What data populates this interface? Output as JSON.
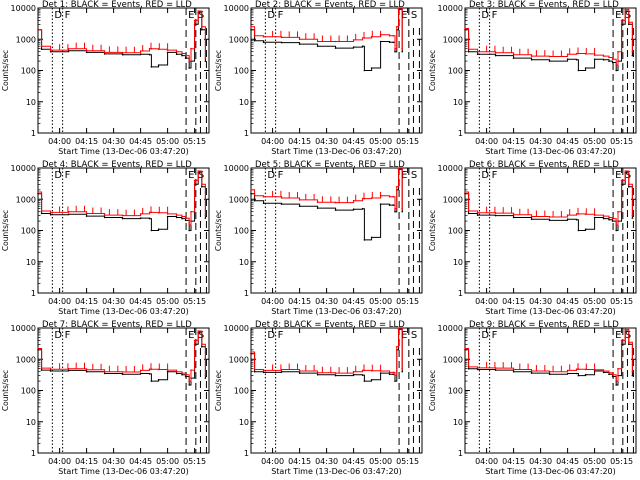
{
  "figure": {
    "xlabel": "Start Time (13-Dec-06 03:47:20)",
    "ylabel": "Counts/sec",
    "x_ticks": [
      "04:00",
      "04:15",
      "04:30",
      "04:45",
      "05:00",
      "05:15"
    ],
    "y_ticks": [
      "1",
      "10",
      "100",
      "1000",
      "10000"
    ],
    "region_labels": [
      "D",
      "F",
      "E",
      "S"
    ],
    "colors": {
      "events": "#000000",
      "lld": "#ff0000"
    }
  },
  "chart_data": [
    {
      "type": "line",
      "title": "Det 1: BLACK = Events, RED = LLD",
      "xlabel": "Start Time (13-Dec-06 03:47:20)",
      "ylabel": "Counts/sec",
      "y_scale": "log",
      "ylim": [
        1,
        10000
      ],
      "xlim": [
        "03:48",
        "05:23"
      ],
      "x_ticks": [
        "04:00",
        "04:15",
        "04:30",
        "04:45",
        "05:00",
        "05:15"
      ],
      "y_ticks": [
        "1",
        "10",
        "100",
        "1000",
        "10000"
      ],
      "region_labels": [
        "D",
        "F",
        "E",
        "S"
      ],
      "x": [
        "03:48",
        "03:50",
        "03:55",
        "04:05",
        "04:15",
        "04:25",
        "04:35",
        "04:45",
        "04:50",
        "04:51",
        "04:55",
        "05:00",
        "05:05",
        "05:08",
        "05:10",
        "05:12",
        "05:13",
        "05:15",
        "05:17",
        "05:19",
        "05:21"
      ],
      "series": [
        {
          "name": "Events",
          "values": [
            2000,
            480,
            400,
            430,
            380,
            340,
            320,
            330,
            320,
            130,
            150,
            380,
            330,
            300,
            250,
            120,
            200,
            3000,
            7000,
            2000,
            200
          ]
        },
        {
          "name": "LLD",
          "values": [
            2000,
            600,
            450,
            500,
            430,
            380,
            370,
            420,
            500,
            500,
            480,
            450,
            400,
            350,
            300,
            200,
            500,
            4000,
            8000,
            2500,
            250
          ]
        }
      ]
    },
    {
      "type": "line",
      "title": "Det 2: BLACK = Events, RED = LLD",
      "xlabel": "Start Time (13-Dec-06 03:47:20)",
      "ylabel": "Counts/sec",
      "y_scale": "log",
      "ylim": [
        1,
        10000
      ],
      "xlim": [
        "03:48",
        "05:23"
      ],
      "x_ticks": [
        "04:00",
        "04:15",
        "04:30",
        "04:45",
        "05:00",
        "05:15"
      ],
      "y_ticks": [
        "1",
        "10",
        "100",
        "1000",
        "10000"
      ],
      "region_labels": [
        "D",
        "F",
        "E",
        "S"
      ],
      "x": [
        "03:48",
        "03:50",
        "03:55",
        "04:05",
        "04:15",
        "04:25",
        "04:35",
        "04:45",
        "04:50",
        "04:51",
        "04:55",
        "05:00",
        "05:05",
        "05:07",
        "05:08",
        "05:09",
        "05:10",
        "05:12"
      ],
      "series": [
        {
          "name": "Events",
          "values": [
            2000,
            900,
            800,
            780,
            700,
            600,
            520,
            560,
            600,
            100,
            120,
            850,
            800,
            800,
            400,
            2000,
            9000,
            400
          ]
        },
        {
          "name": "LLD",
          "values": [
            2500,
            1300,
            1200,
            1150,
            1000,
            850,
            850,
            950,
            1100,
            1100,
            1200,
            1400,
            1300,
            1300,
            500,
            2500,
            9500,
            500
          ]
        }
      ]
    },
    {
      "type": "line",
      "title": "Det 3: BLACK = Events, RED = LLD",
      "xlabel": "Start Time (13-Dec-06 03:47:20)",
      "ylabel": "Counts/sec",
      "y_scale": "log",
      "ylim": [
        1,
        10000
      ],
      "xlim": [
        "03:48",
        "05:23"
      ],
      "x_ticks": [
        "04:00",
        "04:15",
        "04:30",
        "04:45",
        "05:00",
        "05:15"
      ],
      "y_ticks": [
        "1",
        "10",
        "100",
        "1000",
        "10000"
      ],
      "region_labels": [
        "D",
        "F",
        "E",
        "S"
      ],
      "x": [
        "03:48",
        "03:50",
        "03:55",
        "04:05",
        "04:15",
        "04:25",
        "04:35",
        "04:45",
        "04:50",
        "04:51",
        "04:55",
        "05:00",
        "05:05",
        "05:08",
        "05:10",
        "05:12",
        "05:13",
        "05:15",
        "05:17",
        "05:19",
        "05:21"
      ],
      "series": [
        {
          "name": "Events",
          "values": [
            2000,
            400,
            330,
            300,
            250,
            220,
            200,
            230,
            220,
            100,
            120,
            230,
            220,
            200,
            180,
            100,
            200,
            3000,
            8000,
            3000,
            300
          ]
        },
        {
          "name": "LLD",
          "values": [
            2200,
            480,
            400,
            370,
            320,
            290,
            280,
            330,
            350,
            350,
            340,
            310,
            290,
            260,
            230,
            150,
            400,
            4000,
            9000,
            3500,
            400
          ]
        }
      ]
    },
    {
      "type": "line",
      "title": "Det 4: BLACK = Events, RED = LLD",
      "xlabel": "Start Time (13-Dec-06 03:47:20)",
      "ylabel": "Counts/sec",
      "y_scale": "log",
      "ylim": [
        1,
        10000
      ],
      "xlim": [
        "03:48",
        "05:23"
      ],
      "x_ticks": [
        "04:00",
        "04:15",
        "04:30",
        "04:45",
        "05:00",
        "05:15"
      ],
      "y_ticks": [
        "1",
        "10",
        "100",
        "1000",
        "10000"
      ],
      "region_labels": [
        "D",
        "F",
        "E",
        "S"
      ],
      "x": [
        "03:48",
        "03:50",
        "03:55",
        "04:05",
        "04:15",
        "04:25",
        "04:35",
        "04:45",
        "04:50",
        "04:51",
        "04:55",
        "05:00",
        "05:05",
        "05:08",
        "05:10",
        "05:12",
        "05:13",
        "05:15",
        "05:17",
        "05:19",
        "05:21"
      ],
      "series": [
        {
          "name": "Events",
          "values": [
            1500,
            350,
            320,
            330,
            290,
            260,
            240,
            250,
            240,
            100,
            110,
            280,
            260,
            240,
            210,
            100,
            200,
            3000,
            7000,
            2500,
            250
          ]
        },
        {
          "name": "LLD",
          "values": [
            1700,
            420,
            380,
            400,
            350,
            310,
            300,
            340,
            380,
            380,
            370,
            340,
            310,
            280,
            250,
            150,
            400,
            4000,
            8000,
            3000,
            300
          ]
        }
      ]
    },
    {
      "type": "line",
      "title": "Det 5: BLACK = Events, RED = LLD",
      "xlabel": "Start Time (13-Dec-06 03:47:20)",
      "ylabel": "Counts/sec",
      "y_scale": "log",
      "ylim": [
        1,
        10000
      ],
      "xlim": [
        "03:48",
        "05:23"
      ],
      "x_ticks": [
        "04:00",
        "04:15",
        "04:30",
        "04:45",
        "05:00",
        "05:15"
      ],
      "y_ticks": [
        "1",
        "10",
        "100",
        "1000",
        "10000"
      ],
      "region_labels": [
        "D",
        "F",
        "E",
        "S"
      ],
      "x": [
        "03:48",
        "03:50",
        "03:55",
        "04:05",
        "04:15",
        "04:25",
        "04:35",
        "04:45",
        "04:50",
        "04:51",
        "04:55",
        "05:00",
        "05:05",
        "05:07",
        "05:08",
        "05:09",
        "05:10",
        "05:12"
      ],
      "series": [
        {
          "name": "Events",
          "values": [
            1500,
            900,
            750,
            700,
            600,
            520,
            450,
            480,
            500,
            50,
            60,
            700,
            650,
            650,
            400,
            2000,
            9000,
            400
          ]
        },
        {
          "name": "LLD",
          "values": [
            2000,
            1300,
            1200,
            1100,
            950,
            800,
            780,
            900,
            1050,
            1050,
            1100,
            1300,
            1200,
            1200,
            500,
            2500,
            9500,
            500
          ]
        }
      ]
    },
    {
      "type": "line",
      "title": "Det 6: BLACK = Events, RED = LLD",
      "xlabel": "Start Time (13-Dec-06 03:47:20)",
      "ylabel": "Counts/sec",
      "y_scale": "log",
      "ylim": [
        1,
        10000
      ],
      "xlim": [
        "03:48",
        "05:23"
      ],
      "x_ticks": [
        "04:00",
        "04:15",
        "04:30",
        "04:45",
        "05:00",
        "05:15"
      ],
      "y_ticks": [
        "1",
        "10",
        "100",
        "1000",
        "10000"
      ],
      "region_labels": [
        "D",
        "F",
        "E",
        "S"
      ],
      "x": [
        "03:48",
        "03:50",
        "03:55",
        "04:05",
        "04:15",
        "04:25",
        "04:35",
        "04:45",
        "04:50",
        "04:51",
        "04:55",
        "05:00",
        "05:05",
        "05:08",
        "05:10",
        "05:12",
        "05:13",
        "05:15",
        "05:17",
        "05:19",
        "05:21"
      ],
      "series": [
        {
          "name": "Events",
          "values": [
            1500,
            350,
            310,
            300,
            260,
            230,
            210,
            230,
            220,
            100,
            110,
            260,
            240,
            220,
            200,
            100,
            200,
            3000,
            7000,
            2500,
            250
          ]
        },
        {
          "name": "LLD",
          "values": [
            1700,
            420,
            370,
            360,
            320,
            280,
            270,
            310,
            340,
            340,
            330,
            310,
            290,
            260,
            240,
            150,
            400,
            4000,
            8000,
            3000,
            300
          ]
        }
      ]
    },
    {
      "type": "line",
      "title": "Det 7: BLACK = Events, RED = LLD",
      "xlabel": "Start Time (13-Dec-06 03:47:20)",
      "ylabel": "Counts/sec",
      "y_scale": "log",
      "ylim": [
        1,
        10000
      ],
      "xlim": [
        "03:48",
        "05:23"
      ],
      "x_ticks": [
        "04:00",
        "04:15",
        "04:30",
        "04:45",
        "05:00",
        "05:15"
      ],
      "y_ticks": [
        "1",
        "10",
        "100",
        "1000",
        "10000"
      ],
      "region_labels": [
        "D",
        "F",
        "E",
        "S"
      ],
      "x": [
        "03:48",
        "03:50",
        "03:55",
        "04:05",
        "04:15",
        "04:25",
        "04:35",
        "04:45",
        "04:50",
        "04:51",
        "04:55",
        "05:00",
        "05:05",
        "05:08",
        "05:10",
        "05:12",
        "05:13",
        "05:15",
        "05:17",
        "05:19",
        "05:21"
      ],
      "series": [
        {
          "name": "Events",
          "values": [
            2000,
            450,
            420,
            440,
            400,
            350,
            330,
            350,
            340,
            200,
            220,
            400,
            350,
            320,
            280,
            150,
            250,
            3000,
            7000,
            2500,
            250
          ]
        },
        {
          "name": "LLD",
          "values": [
            2200,
            520,
            480,
            500,
            460,
            400,
            390,
            440,
            480,
            480,
            470,
            450,
            400,
            360,
            320,
            200,
            450,
            4000,
            8000,
            3000,
            300
          ]
        }
      ]
    },
    {
      "type": "line",
      "title": "Det 8: BLACK = Events, RED = LLD",
      "xlabel": "Start Time (13-Dec-06 03:47:20)",
      "ylabel": "Counts/sec",
      "y_scale": "log",
      "ylim": [
        1,
        10000
      ],
      "xlim": [
        "03:48",
        "05:23"
      ],
      "x_ticks": [
        "04:00",
        "04:15",
        "04:30",
        "04:45",
        "05:00",
        "05:15"
      ],
      "y_ticks": [
        "1",
        "10",
        "100",
        "1000",
        "10000"
      ],
      "region_labels": [
        "D",
        "F",
        "E",
        "S"
      ],
      "x": [
        "03:48",
        "03:50",
        "03:55",
        "04:05",
        "04:15",
        "04:25",
        "04:35",
        "04:45",
        "04:50",
        "04:51",
        "04:55",
        "05:00",
        "05:05",
        "05:07",
        "05:08",
        "05:09",
        "05:10",
        "05:12"
      ],
      "series": [
        {
          "name": "Events",
          "values": [
            1500,
            400,
            380,
            400,
            360,
            320,
            300,
            320,
            310,
            200,
            220,
            360,
            330,
            330,
            200,
            2000,
            9000,
            400
          ]
        },
        {
          "name": "LLD",
          "values": [
            1700,
            470,
            440,
            470,
            420,
            370,
            360,
            400,
            440,
            440,
            430,
            420,
            380,
            380,
            300,
            2500,
            9500,
            500
          ]
        }
      ]
    },
    {
      "type": "line",
      "title": "Det 9: BLACK = Events, RED = LLD",
      "xlabel": "Start Time (13-Dec-06 03:47:20)",
      "ylabel": "Counts/sec",
      "y_scale": "log",
      "ylim": [
        1,
        10000
      ],
      "xlim": [
        "03:48",
        "05:23"
      ],
      "x_ticks": [
        "04:00",
        "04:15",
        "04:30",
        "04:45",
        "05:00",
        "05:15"
      ],
      "y_ticks": [
        "1",
        "10",
        "100",
        "1000",
        "10000"
      ],
      "region_labels": [
        "D",
        "F",
        "E",
        "S"
      ],
      "x": [
        "03:48",
        "03:50",
        "03:55",
        "04:05",
        "04:15",
        "04:25",
        "04:35",
        "04:45",
        "04:50",
        "04:51",
        "04:55",
        "05:00",
        "05:05",
        "05:08",
        "05:10",
        "05:12",
        "05:13",
        "05:15",
        "05:17",
        "05:19",
        "05:21"
      ],
      "series": [
        {
          "name": "Events",
          "values": [
            2000,
            500,
            470,
            450,
            400,
            360,
            330,
            350,
            350,
            300,
            320,
            420,
            380,
            330,
            280,
            150,
            300,
            3000,
            8000,
            3000,
            300
          ]
        },
        {
          "name": "LLD",
          "values": [
            2200,
            570,
            530,
            520,
            470,
            420,
            400,
            440,
            480,
            480,
            470,
            460,
            420,
            370,
            320,
            200,
            500,
            4000,
            9000,
            3500,
            400
          ]
        }
      ]
    }
  ]
}
